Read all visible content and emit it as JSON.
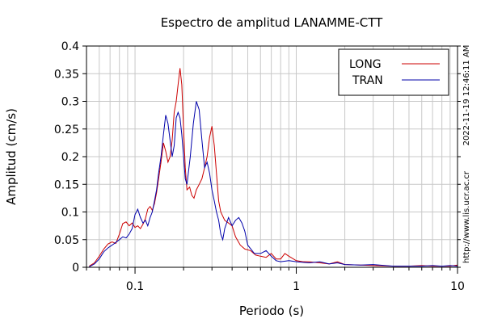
{
  "chart_data": {
    "type": "line",
    "title": "Espectro de amplitud LANAMME-CTT",
    "xlabel": "Periodo (s)",
    "ylabel": "Amplitud (cm/s)",
    "x_scale": "log",
    "xlim": [
      0.05,
      10
    ],
    "ylim": [
      0,
      0.4
    ],
    "x_ticks": [
      {
        "value": 0.1,
        "label": "0.1"
      },
      {
        "value": 1,
        "label": "1"
      },
      {
        "value": 10,
        "label": "10"
      }
    ],
    "y_ticks": [
      {
        "value": 0,
        "label": "0"
      },
      {
        "value": 0.05,
        "label": "0.05"
      },
      {
        "value": 0.1,
        "label": "0.1"
      },
      {
        "value": 0.15,
        "label": "0.15"
      },
      {
        "value": 0.2,
        "label": "0.2"
      },
      {
        "value": 0.25,
        "label": "0.25"
      },
      {
        "value": 0.3,
        "label": "0.3"
      },
      {
        "value": 0.35,
        "label": "0.35"
      },
      {
        "value": 0.4,
        "label": "0.4"
      }
    ],
    "grid": true,
    "legend_position": "top-right",
    "series": [
      {
        "name": "LONG",
        "color": "#cc0000",
        "points": [
          [
            0.052,
            0.002
          ],
          [
            0.056,
            0.008
          ],
          [
            0.06,
            0.02
          ],
          [
            0.064,
            0.033
          ],
          [
            0.068,
            0.042
          ],
          [
            0.072,
            0.046
          ],
          [
            0.076,
            0.043
          ],
          [
            0.08,
            0.06
          ],
          [
            0.084,
            0.079
          ],
          [
            0.088,
            0.082
          ],
          [
            0.092,
            0.075
          ],
          [
            0.096,
            0.08
          ],
          [
            0.1,
            0.072
          ],
          [
            0.104,
            0.075
          ],
          [
            0.108,
            0.07
          ],
          [
            0.112,
            0.078
          ],
          [
            0.116,
            0.088
          ],
          [
            0.12,
            0.105
          ],
          [
            0.124,
            0.11
          ],
          [
            0.128,
            0.103
          ],
          [
            0.132,
            0.115
          ],
          [
            0.136,
            0.135
          ],
          [
            0.14,
            0.16
          ],
          [
            0.145,
            0.19
          ],
          [
            0.15,
            0.225
          ],
          [
            0.155,
            0.21
          ],
          [
            0.16,
            0.19
          ],
          [
            0.165,
            0.2
          ],
          [
            0.17,
            0.23
          ],
          [
            0.175,
            0.28
          ],
          [
            0.18,
            0.3
          ],
          [
            0.185,
            0.33
          ],
          [
            0.19,
            0.36
          ],
          [
            0.195,
            0.33
          ],
          [
            0.2,
            0.25
          ],
          [
            0.205,
            0.18
          ],
          [
            0.21,
            0.14
          ],
          [
            0.218,
            0.145
          ],
          [
            0.225,
            0.13
          ],
          [
            0.232,
            0.125
          ],
          [
            0.24,
            0.14
          ],
          [
            0.25,
            0.15
          ],
          [
            0.26,
            0.16
          ],
          [
            0.27,
            0.18
          ],
          [
            0.28,
            0.2
          ],
          [
            0.29,
            0.235
          ],
          [
            0.3,
            0.255
          ],
          [
            0.31,
            0.22
          ],
          [
            0.32,
            0.17
          ],
          [
            0.33,
            0.12
          ],
          [
            0.34,
            0.1
          ],
          [
            0.36,
            0.085
          ],
          [
            0.38,
            0.08
          ],
          [
            0.4,
            0.075
          ],
          [
            0.42,
            0.055
          ],
          [
            0.45,
            0.04
          ],
          [
            0.48,
            0.033
          ],
          [
            0.52,
            0.03
          ],
          [
            0.56,
            0.022
          ],
          [
            0.6,
            0.02
          ],
          [
            0.65,
            0.018
          ],
          [
            0.7,
            0.025
          ],
          [
            0.75,
            0.015
          ],
          [
            0.8,
            0.015
          ],
          [
            0.85,
            0.025
          ],
          [
            0.9,
            0.02
          ],
          [
            1.0,
            0.012
          ],
          [
            1.1,
            0.01
          ],
          [
            1.2,
            0.01
          ],
          [
            1.4,
            0.008
          ],
          [
            1.6,
            0.006
          ],
          [
            1.8,
            0.01
          ],
          [
            2.0,
            0.005
          ],
          [
            2.5,
            0.004
          ],
          [
            3.0,
            0.003
          ],
          [
            4.0,
            0.002
          ],
          [
            5.0,
            0.002
          ],
          [
            6.0,
            0.003
          ],
          [
            7.0,
            0.002
          ],
          [
            8.0,
            0.002
          ],
          [
            9.0,
            0.002
          ],
          [
            10.0,
            0.004
          ]
        ]
      },
      {
        "name": "TRAN",
        "color": "#0000aa",
        "points": [
          [
            0.052,
            0.001
          ],
          [
            0.056,
            0.006
          ],
          [
            0.06,
            0.015
          ],
          [
            0.064,
            0.028
          ],
          [
            0.068,
            0.035
          ],
          [
            0.072,
            0.04
          ],
          [
            0.076,
            0.045
          ],
          [
            0.08,
            0.05
          ],
          [
            0.084,
            0.055
          ],
          [
            0.088,
            0.053
          ],
          [
            0.092,
            0.06
          ],
          [
            0.096,
            0.07
          ],
          [
            0.1,
            0.095
          ],
          [
            0.104,
            0.105
          ],
          [
            0.108,
            0.09
          ],
          [
            0.112,
            0.08
          ],
          [
            0.116,
            0.085
          ],
          [
            0.12,
            0.075
          ],
          [
            0.124,
            0.09
          ],
          [
            0.128,
            0.1
          ],
          [
            0.132,
            0.12
          ],
          [
            0.136,
            0.14
          ],
          [
            0.14,
            0.17
          ],
          [
            0.145,
            0.2
          ],
          [
            0.15,
            0.24
          ],
          [
            0.155,
            0.275
          ],
          [
            0.16,
            0.26
          ],
          [
            0.165,
            0.23
          ],
          [
            0.17,
            0.2
          ],
          [
            0.175,
            0.22
          ],
          [
            0.18,
            0.27
          ],
          [
            0.185,
            0.28
          ],
          [
            0.19,
            0.27
          ],
          [
            0.195,
            0.24
          ],
          [
            0.2,
            0.2
          ],
          [
            0.205,
            0.16
          ],
          [
            0.21,
            0.15
          ],
          [
            0.22,
            0.2
          ],
          [
            0.23,
            0.26
          ],
          [
            0.24,
            0.3
          ],
          [
            0.25,
            0.285
          ],
          [
            0.26,
            0.23
          ],
          [
            0.27,
            0.18
          ],
          [
            0.28,
            0.19
          ],
          [
            0.29,
            0.17
          ],
          [
            0.3,
            0.14
          ],
          [
            0.31,
            0.12
          ],
          [
            0.32,
            0.1
          ],
          [
            0.33,
            0.085
          ],
          [
            0.34,
            0.06
          ],
          [
            0.35,
            0.05
          ],
          [
            0.36,
            0.07
          ],
          [
            0.38,
            0.09
          ],
          [
            0.4,
            0.075
          ],
          [
            0.42,
            0.085
          ],
          [
            0.44,
            0.09
          ],
          [
            0.46,
            0.08
          ],
          [
            0.48,
            0.065
          ],
          [
            0.5,
            0.04
          ],
          [
            0.55,
            0.025
          ],
          [
            0.6,
            0.025
          ],
          [
            0.65,
            0.03
          ],
          [
            0.7,
            0.02
          ],
          [
            0.75,
            0.012
          ],
          [
            0.8,
            0.01
          ],
          [
            0.9,
            0.012
          ],
          [
            1.0,
            0.01
          ],
          [
            1.2,
            0.008
          ],
          [
            1.4,
            0.01
          ],
          [
            1.6,
            0.006
          ],
          [
            1.8,
            0.008
          ],
          [
            2.0,
            0.005
          ],
          [
            2.5,
            0.004
          ],
          [
            3.0,
            0.005
          ],
          [
            4.0,
            0.002
          ],
          [
            5.0,
            0.002
          ],
          [
            6.0,
            0.002
          ],
          [
            7.0,
            0.003
          ],
          [
            8.0,
            0.002
          ],
          [
            9.0,
            0.003
          ],
          [
            10.0,
            0.002
          ]
        ]
      }
    ],
    "side_text_right": "2022-11-19 12:46:11 AM",
    "side_text_url": "http://www.lis.ucr.ac.cr"
  }
}
